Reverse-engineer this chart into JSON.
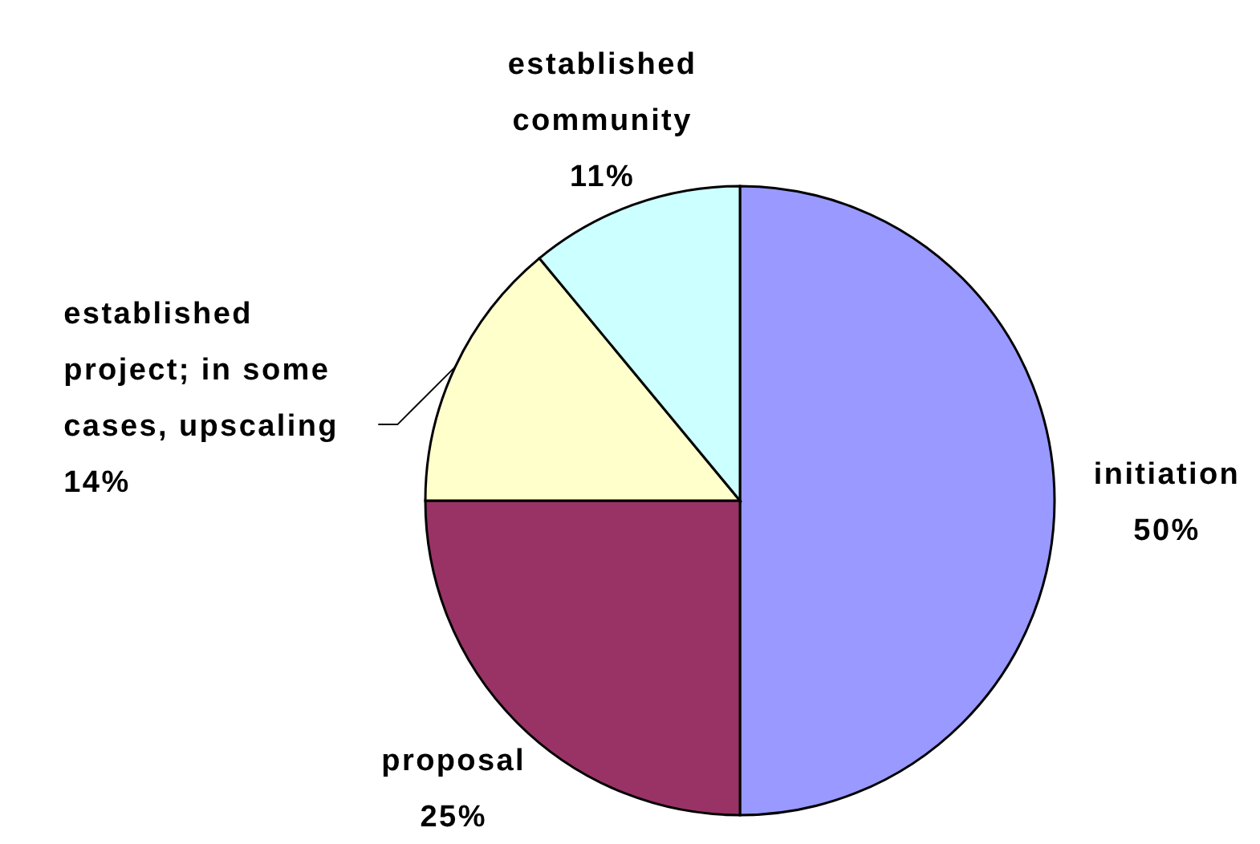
{
  "chart_data": {
    "type": "pie",
    "categories": [
      "initiation",
      "proposal",
      "established project; in some cases, upscaling",
      "established community"
    ],
    "values": [
      50,
      25,
      14,
      11
    ],
    "colors": [
      "#9999ff",
      "#993366",
      "#ffffcc",
      "#ccffff"
    ],
    "value_labels": [
      "50%",
      "25%",
      "14%",
      "11%"
    ]
  }
}
